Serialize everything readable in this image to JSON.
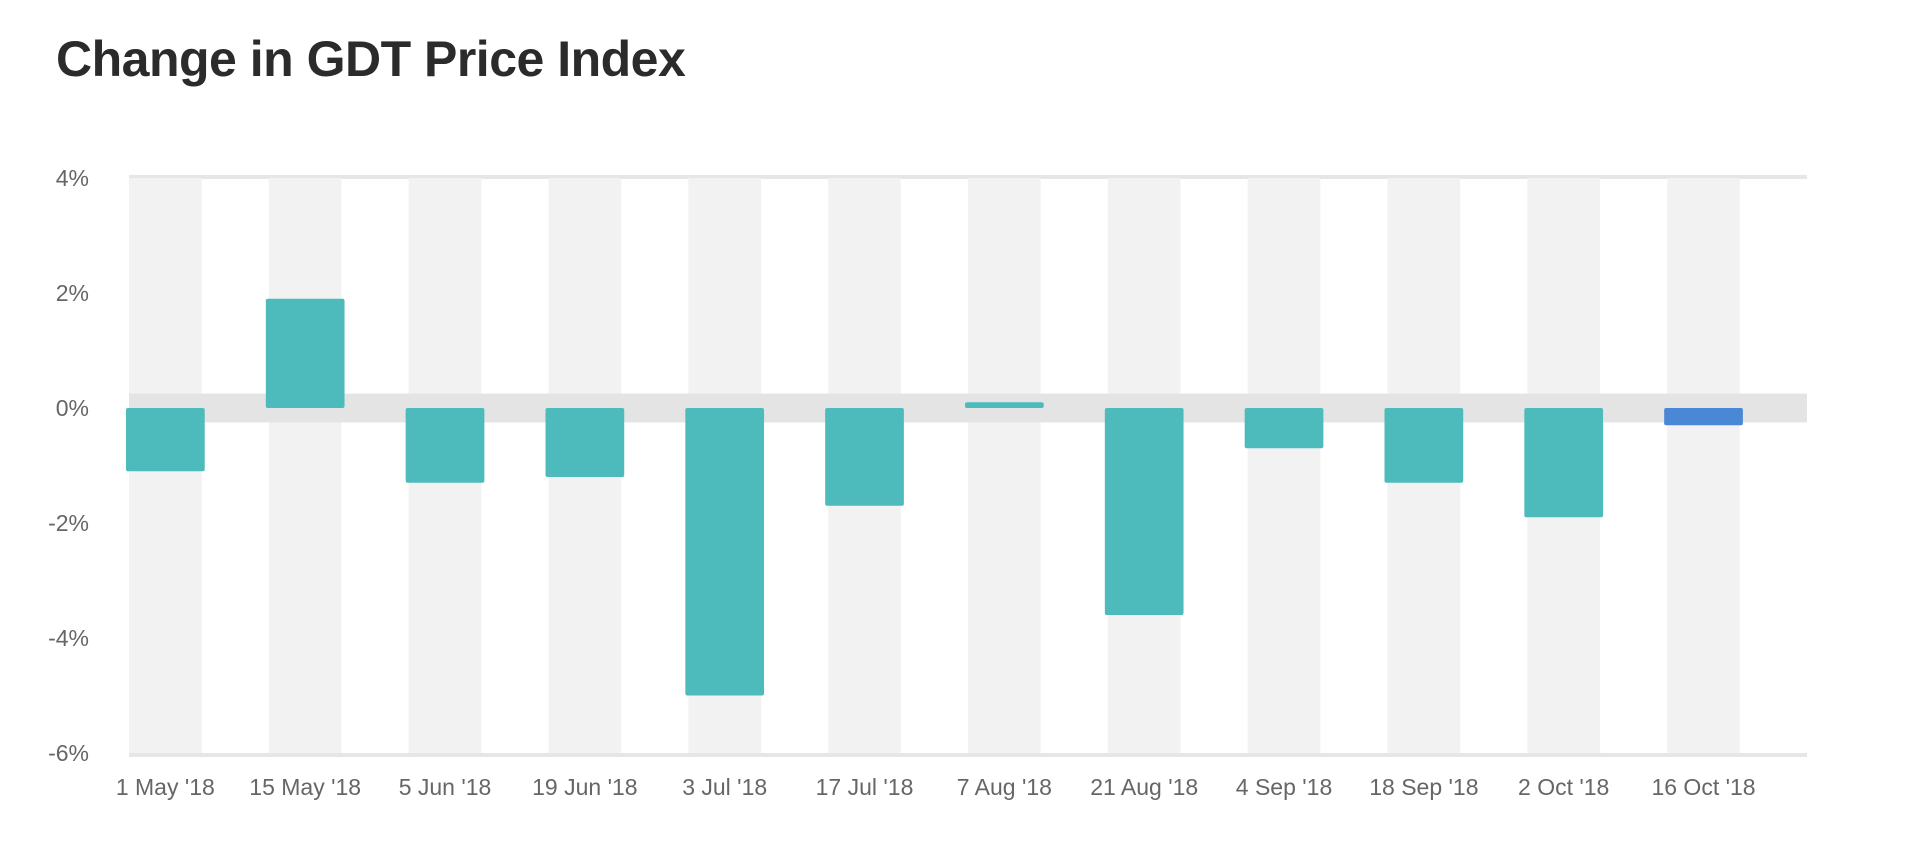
{
  "chart_data": {
    "type": "bar",
    "title": "Change in GDT Price Index",
    "xlabel": "",
    "ylabel": "",
    "ylim": [
      -6,
      4
    ],
    "yticks": [
      4,
      2,
      0,
      -2,
      -4,
      -6
    ],
    "ytick_labels": [
      "4%",
      "2%",
      "0%",
      "-2%",
      "-4%",
      "-6%"
    ],
    "categories": [
      "1 May '18",
      "15 May '18",
      "5 Jun '18",
      "19 Jun '18",
      "3 Jul '18",
      "17 Jul '18",
      "7 Aug '18",
      "21 Aug '18",
      "4 Sep '18",
      "18 Sep '18",
      "2 Oct '18",
      "16 Oct '18"
    ],
    "values": [
      -1.1,
      1.9,
      -1.3,
      -1.2,
      -5.0,
      -1.7,
      0.1,
      -3.6,
      -0.7,
      -1.3,
      -1.9,
      -0.3
    ],
    "grid": false,
    "legend": "none",
    "colors": {
      "bar": "#4dbbbb",
      "highlight": "#4a87d4",
      "band": "#f2f2f2",
      "zero_band": "#e4e4e4"
    },
    "highlight_index": 11
  }
}
